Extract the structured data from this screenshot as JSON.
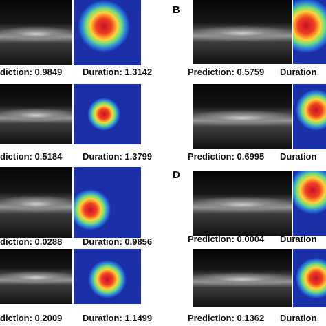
{
  "left_column": {
    "rows": [
      {
        "prediction": "diction: 0.9849",
        "duration": "Duration: 1.3142"
      },
      {
        "prediction": "diction: 0.5184",
        "duration": "Duration: 1.3799"
      },
      {
        "prediction": "diction: 0.0288",
        "duration": "Duration: 0.9856"
      },
      {
        "prediction": "diction: 0.2009",
        "duration": "Duration: 1.1499"
      }
    ]
  },
  "right_column": {
    "labels": [
      "B",
      "D"
    ],
    "rows": [
      {
        "prediction": "Prediction: 0.5759",
        "duration": "Duration"
      },
      {
        "prediction": "Prediction: 0.6995",
        "duration": "Duration"
      },
      {
        "prediction": "Prediction: 0.0004",
        "duration": "Duration"
      },
      {
        "prediction": "Prediction: 0.1362",
        "duration": "Duration"
      }
    ]
  }
}
